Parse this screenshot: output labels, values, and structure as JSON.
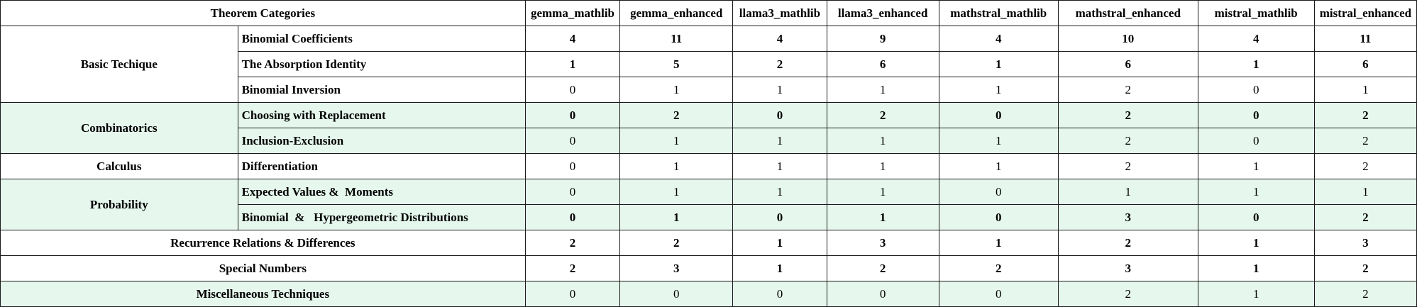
{
  "header": {
    "category": "Theorem Categories",
    "columns": [
      "gemma_mathlib",
      "gemma_enhanced",
      "llama3_mathlib",
      "llama3_enhanced",
      "mathstral_mathlib",
      "mathstral_enhanced",
      "mistral_mathlib",
      "mistral_enhanced"
    ]
  },
  "groups": {
    "basic": "Basic Techique",
    "combinatorics": "Combinatorics",
    "calculus": "Calculus",
    "probability": "Probability",
    "recurrence": "Recurrence Relations & Differences",
    "special": "Special Numbers",
    "misc": "Miscellaneous Techniques"
  },
  "rows": [
    {
      "label": "Binomial Coefficients",
      "values": [
        "4",
        "11",
        "4",
        "9",
        "4",
        "10",
        "4",
        "11"
      ]
    },
    {
      "label": "The Absorption Identity",
      "values": [
        "1",
        "5",
        "2",
        "6",
        "1",
        "6",
        "1",
        "6"
      ]
    },
    {
      "label": "Binomial Inversion",
      "values": [
        "0",
        "1",
        "1",
        "1",
        "1",
        "2",
        "0",
        "1"
      ]
    },
    {
      "label": "Choosing with Replacement",
      "values": [
        "0",
        "2",
        "0",
        "2",
        "0",
        "2",
        "0",
        "2"
      ]
    },
    {
      "label": "Inclusion-Exclusion",
      "values": [
        "0",
        "1",
        "1",
        "1",
        "1",
        "2",
        "0",
        "2"
      ]
    },
    {
      "label": "Differentiation",
      "values": [
        "0",
        "1",
        "1",
        "1",
        "1",
        "2",
        "1",
        "2"
      ]
    },
    {
      "label": "Expected Values &  Moments",
      "values": [
        "0",
        "1",
        "1",
        "1",
        "0",
        "1",
        "1",
        "1"
      ]
    },
    {
      "label": "Binomial  &   Hypergeometric Distributions",
      "values": [
        "0",
        "1",
        "0",
        "1",
        "0",
        "3",
        "0",
        "2"
      ]
    },
    {
      "label": "",
      "values": [
        "2",
        "2",
        "1",
        "3",
        "1",
        "2",
        "1",
        "3"
      ]
    },
    {
      "label": "",
      "values": [
        "2",
        "3",
        "1",
        "2",
        "2",
        "3",
        "1",
        "2"
      ]
    },
    {
      "label": "",
      "values": [
        "0",
        "0",
        "0",
        "0",
        "0",
        "2",
        "1",
        "2"
      ]
    }
  ]
}
